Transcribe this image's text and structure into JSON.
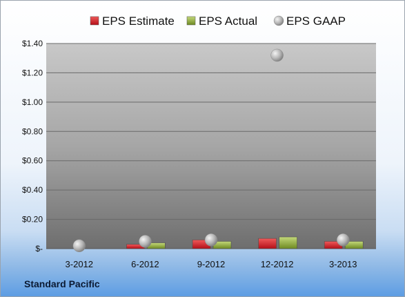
{
  "company": "Standard Pacific",
  "chart_data": {
    "type": "bar",
    "categories": [
      "3-2012",
      "6-2012",
      "9-2012",
      "12-2012",
      "3-2013"
    ],
    "series": [
      {
        "name": "EPS Estimate",
        "kind": "bar",
        "color": "#d0202a",
        "values": [
          0,
          0.03,
          0.06,
          0.07,
          0.05
        ]
      },
      {
        "name": "EPS Actual",
        "kind": "bar",
        "color": "#8fae3b",
        "values": [
          0,
          0.04,
          0.05,
          0.08,
          0.05
        ]
      },
      {
        "name": "EPS GAAP",
        "kind": "marker",
        "color": "#a9a9a9",
        "values": [
          0.02,
          0.05,
          0.06,
          1.32,
          0.06
        ]
      }
    ],
    "yticks": [
      0,
      0.2,
      0.4,
      0.6,
      0.8,
      1.0,
      1.2,
      1.4
    ],
    "ytick_labels": [
      "$-",
      "$0.20",
      "$0.40",
      "$0.60",
      "$0.80",
      "$1.00",
      "$1.20",
      "$1.40"
    ],
    "ylim": [
      0,
      1.4
    ],
    "grid": true,
    "legend_position": "top"
  }
}
